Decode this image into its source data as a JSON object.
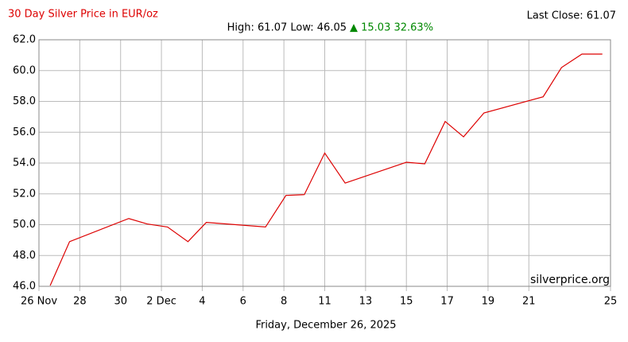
{
  "chart_data": {
    "type": "line",
    "title": "30 Day Silver Price in EUR/oz",
    "summary": "High: 61.07 Low: 46.05",
    "change": "▲ 15.03 32.63%",
    "last_close": "Last Close: 61.07",
    "watermark": "silverprice.org",
    "x_label": "Friday, December 26, 2025",
    "x": [
      0.55,
      1.5,
      4.4,
      5.3,
      6.3,
      7.3,
      8.2,
      11.1,
      12.1,
      13.0,
      14.0,
      15.0,
      18.0,
      18.9,
      19.9,
      20.8,
      21.8,
      24.7,
      25.6,
      26.6,
      27.6
    ],
    "series": [
      {
        "name": "Silver EUR/oz",
        "color": "#dd0000",
        "values": [
          46.05,
          48.9,
          50.4,
          50.05,
          49.85,
          48.9,
          50.15,
          49.85,
          51.9,
          51.95,
          54.65,
          52.7,
          54.05,
          53.95,
          56.7,
          55.7,
          57.25,
          58.3,
          60.2,
          61.07,
          61.07
        ]
      }
    ],
    "xlim": [
      0,
      28
    ],
    "xticks": [
      {
        "value": 0,
        "label": "26 Nov"
      },
      {
        "value": 2,
        "label": "28"
      },
      {
        "value": 4,
        "label": "30"
      },
      {
        "value": 6,
        "label": "2 Dec"
      },
      {
        "value": 8,
        "label": "4"
      },
      {
        "value": 10,
        "label": "6"
      },
      {
        "value": 12,
        "label": "8"
      },
      {
        "value": 14,
        "label": "11"
      },
      {
        "value": 16,
        "label": "13"
      },
      {
        "value": 18,
        "label": "15"
      },
      {
        "value": 20,
        "label": "17"
      },
      {
        "value": 22,
        "label": "19"
      },
      {
        "value": 24,
        "label": "21"
      },
      {
        "value": 28,
        "label": "25"
      }
    ],
    "ylim": [
      46,
      62
    ],
    "yticks": [
      {
        "value": 46,
        "label": "46.0"
      },
      {
        "value": 48,
        "label": "48.0"
      },
      {
        "value": 50,
        "label": "50.0"
      },
      {
        "value": 52,
        "label": "52.0"
      },
      {
        "value": 54,
        "label": "54.0"
      },
      {
        "value": 56,
        "label": "56.0"
      },
      {
        "value": 58,
        "label": "58.0"
      },
      {
        "value": 60,
        "label": "60.0"
      },
      {
        "value": 62,
        "label": "62.0"
      }
    ],
    "grid": true
  }
}
